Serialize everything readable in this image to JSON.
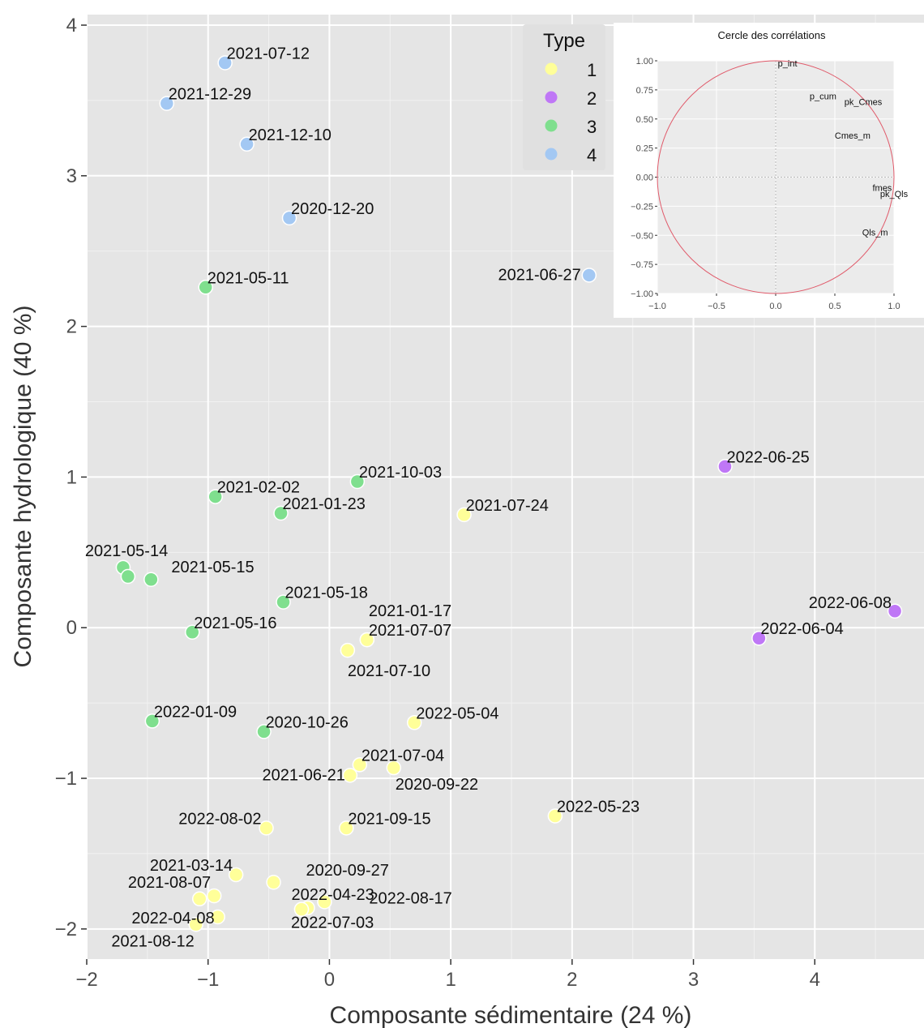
{
  "chart_data": {
    "type": "scatter",
    "xlabel": "Composante sédimentaire (24 %)",
    "ylabel": "Composante hydrologique (40 %)",
    "xlim": [
      -2,
      4.9
    ],
    "ylim": [
      -2.2,
      4.07
    ],
    "x_ticks": [
      -2,
      -1,
      0,
      1,
      2,
      3,
      4
    ],
    "y_ticks": [
      -2,
      -1,
      0,
      1,
      2,
      3,
      4
    ],
    "x_tick_labels": [
      "−2",
      "−1",
      "0",
      "1",
      "2",
      "3",
      "4"
    ],
    "y_tick_labels": [
      "−2",
      "−1",
      "0",
      "1",
      "2",
      "3",
      "4"
    ],
    "grid": true,
    "legend": {
      "title": "Type",
      "position": "top-right",
      "entries": [
        {
          "label": "1",
          "color": "#ffff99"
        },
        {
          "label": "2",
          "color": "#bf77f6"
        },
        {
          "label": "3",
          "color": "#7fdf8e"
        },
        {
          "label": "4",
          "color": "#a3c8f3"
        }
      ]
    },
    "points": [
      {
        "label": "2021-07-12",
        "type": "4",
        "x": -0.86,
        "y": 3.75
      },
      {
        "label": "2021-12-29",
        "type": "4",
        "x": -1.34,
        "y": 3.48
      },
      {
        "label": "2021-12-10",
        "type": "4",
        "x": -0.68,
        "y": 3.21
      },
      {
        "label": "2020-12-20",
        "type": "4",
        "x": -0.33,
        "y": 2.72
      },
      {
        "label": "2021-06-27",
        "type": "4",
        "x": 2.14,
        "y": 2.34
      },
      {
        "label": "2021-05-11",
        "type": "3",
        "x": -1.02,
        "y": 2.26
      },
      {
        "label": "2021-10-03",
        "type": "3",
        "x": 0.23,
        "y": 0.97
      },
      {
        "label": "2021-02-02",
        "type": "3",
        "x": -0.94,
        "y": 0.87
      },
      {
        "label": "2021-01-23",
        "type": "3",
        "x": -0.4,
        "y": 0.76
      },
      {
        "label": "2021-05-14",
        "type": "3",
        "x": -1.7,
        "y": 0.4
      },
      {
        "label": "2021-05-15",
        "type": "3",
        "x": -1.47,
        "y": 0.32
      },
      {
        "label": "",
        "type": "3",
        "x": -1.66,
        "y": 0.34
      },
      {
        "label": "2021-05-18",
        "type": "3",
        "x": -0.38,
        "y": 0.17
      },
      {
        "label": "2021-05-16",
        "type": "3",
        "x": -1.13,
        "y": -0.03
      },
      {
        "label": "2022-01-09",
        "type": "3",
        "x": -1.46,
        "y": -0.62
      },
      {
        "label": "2020-10-26",
        "type": "3",
        "x": -0.54,
        "y": -0.69
      },
      {
        "label": "2021-07-24",
        "type": "1",
        "x": 1.11,
        "y": 0.75
      },
      {
        "label": "2021-01-17",
        "type": "1",
        "x": 0.31,
        "y": -0.08
      },
      {
        "label": "2021-07-07",
        "type": "1",
        "x": 0.31,
        "y": -0.08
      },
      {
        "label": "2021-07-10",
        "type": "1",
        "x": 0.15,
        "y": -0.15
      },
      {
        "label": "2022-05-04",
        "type": "1",
        "x": 0.7,
        "y": -0.63
      },
      {
        "label": "2021-07-04",
        "type": "1",
        "x": 0.25,
        "y": -0.91
      },
      {
        "label": "2021-06-21",
        "type": "1",
        "x": 0.17,
        "y": -0.98
      },
      {
        "label": "2020-09-22",
        "type": "1",
        "x": 0.53,
        "y": -0.93
      },
      {
        "label": "2022-05-23",
        "type": "1",
        "x": 1.86,
        "y": -1.25
      },
      {
        "label": "2022-08-02",
        "type": "1",
        "x": -0.52,
        "y": -1.33
      },
      {
        "label": "2021-09-15",
        "type": "1",
        "x": 0.14,
        "y": -1.33
      },
      {
        "label": "2021-03-14",
        "type": "1",
        "x": -0.77,
        "y": -1.64
      },
      {
        "label": "2020-09-27",
        "type": "1",
        "x": -0.46,
        "y": -1.69
      },
      {
        "label": "2021-08-07",
        "type": "1",
        "x": -0.95,
        "y": -1.78
      },
      {
        "label": "",
        "type": "1",
        "x": -1.07,
        "y": -1.8
      },
      {
        "label": "2022-04-23",
        "type": "1",
        "x": -0.18,
        "y": -1.86
      },
      {
        "label": "",
        "type": "1",
        "x": -0.23,
        "y": -1.87
      },
      {
        "label": "2022-08-17",
        "type": "1",
        "x": -0.04,
        "y": -1.82
      },
      {
        "label": "2022-04-08",
        "type": "1",
        "x": -0.92,
        "y": -1.92
      },
      {
        "label": "2021-08-12",
        "type": "1",
        "x": -1.1,
        "y": -1.97
      },
      {
        "label": "2022-07-03",
        "type": "1",
        "x": -0.23,
        "y": -1.87
      },
      {
        "label": "2022-06-25",
        "type": "2",
        "x": 3.26,
        "y": 1.07
      },
      {
        "label": "2022-06-08",
        "type": "2",
        "x": 4.66,
        "y": 0.11
      },
      {
        "label": "2022-06-04",
        "type": "2",
        "x": 3.54,
        "y": -0.07
      }
    ],
    "inset": {
      "type": "scatter",
      "title": "Cercle des corrélations",
      "xlim": [
        -1.0,
        1.0
      ],
      "ylim": [
        -1.0,
        1.0
      ],
      "x_tick_labels": [
        "−1.0",
        "−0.5",
        "0.0",
        "0.5",
        "1.0"
      ],
      "y_tick_labels": [
        "1.00",
        "0.75",
        "0.50",
        "0.25",
        "0.00",
        "−0.25",
        "−0.50",
        "−0.75",
        "−1.00"
      ],
      "circle_color": "#e05a6a",
      "variables": [
        {
          "label": "p_int",
          "x": 0.1,
          "y": 0.95
        },
        {
          "label": "p_cum",
          "x": 0.4,
          "y": 0.67
        },
        {
          "label": "pk_Cmes",
          "x": 0.74,
          "y": 0.62
        },
        {
          "label": "Cmes_m",
          "x": 0.65,
          "y": 0.33
        },
        {
          "label": "fmes",
          "x": 0.9,
          "y": -0.12
        },
        {
          "label": "pk_Qls",
          "x": 1.0,
          "y": -0.17
        },
        {
          "label": "Qls_m",
          "x": 0.84,
          "y": -0.5
        }
      ]
    }
  }
}
